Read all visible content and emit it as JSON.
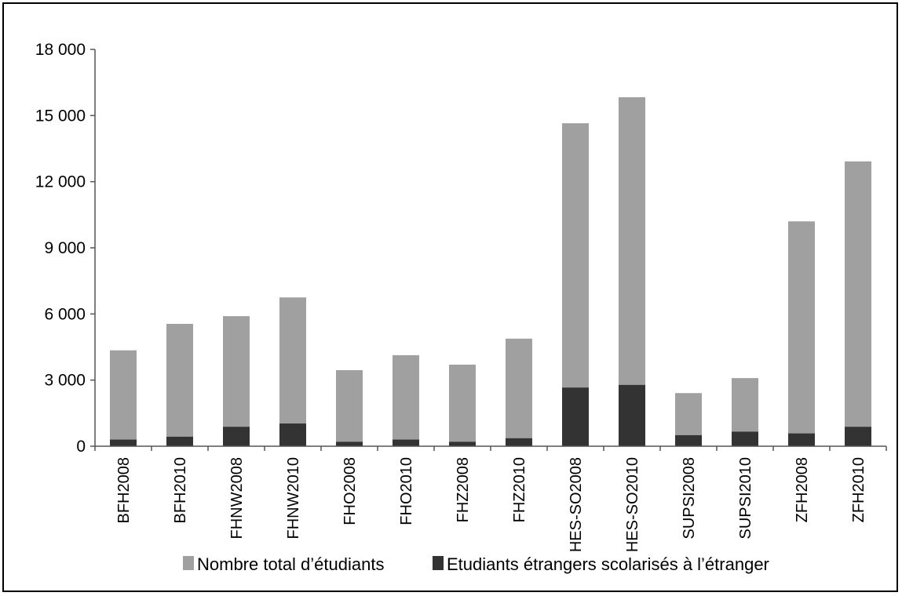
{
  "chart_data": {
    "type": "bar",
    "stacked": true,
    "categories": [
      "BFH2008",
      "BFH2010",
      "FHNW2008",
      "FHNW2010",
      "FHO2008",
      "FHO2010",
      "FHZ2008",
      "FHZ2010",
      "HES-SO2008",
      "HES-SO2010",
      "SUPSI2008",
      "SUPSI2010",
      "ZFH2008",
      "ZFH2010"
    ],
    "series": [
      {
        "name": "Nombre total d’étudiants",
        "color": "#a0a0a0",
        "values": [
          4350,
          5550,
          5900,
          6750,
          3450,
          4130,
          3700,
          4880,
          14650,
          15830,
          2410,
          3090,
          10200,
          12920
        ]
      },
      {
        "name": "Etudiants étrangers scolarisés à l’étranger",
        "color": "#333333",
        "values": [
          300,
          430,
          880,
          1030,
          200,
          300,
          200,
          360,
          2660,
          2780,
          500,
          660,
          580,
          880
        ]
      }
    ],
    "ylim": [
      0,
      18000
    ],
    "yticks": [
      0,
      3000,
      6000,
      9000,
      12000,
      15000,
      18000
    ],
    "ytick_labels": [
      "0",
      "3 000",
      "6 000",
      "9 000",
      "12 000",
      "15 000",
      "18 000"
    ],
    "title": "",
    "xlabel": "",
    "ylabel": "",
    "grid": false,
    "legend_position": "bottom"
  }
}
